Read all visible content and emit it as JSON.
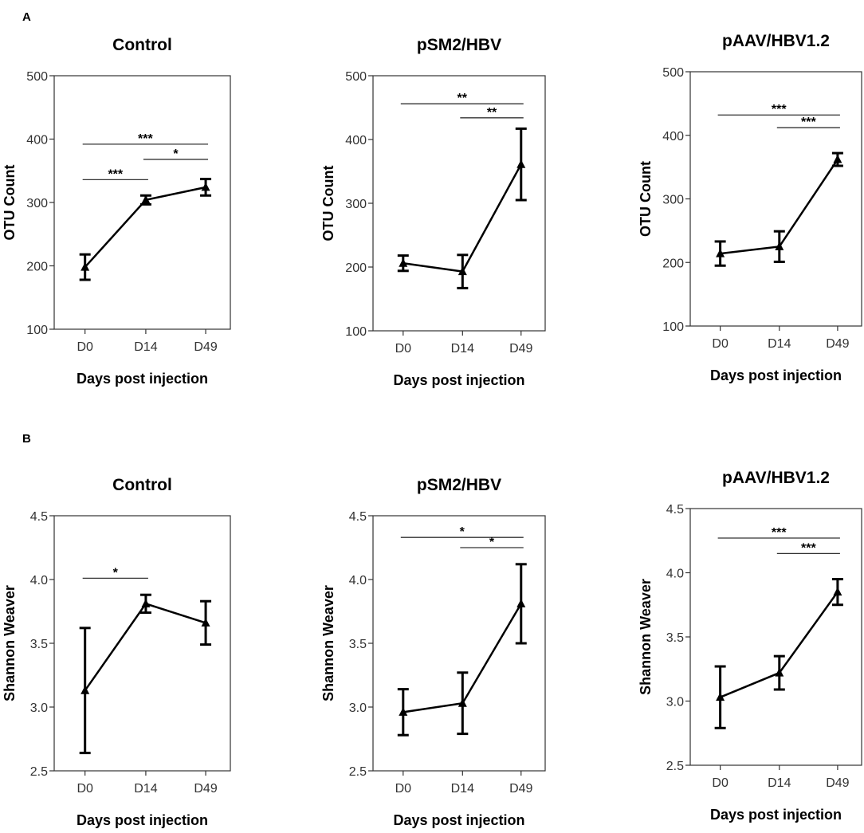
{
  "panels": [
    {
      "label": "A"
    },
    {
      "label": "B"
    }
  ],
  "chart_data": [
    {
      "type": "line",
      "panel": "A",
      "title": "Control",
      "xlabel": "Days post injection",
      "ylabel": "OTU Count",
      "categories": [
        "D0",
        "D14",
        "D49"
      ],
      "values": [
        198,
        304,
        324
      ],
      "errors": [
        20,
        7,
        13
      ],
      "ylim": [
        100,
        500
      ],
      "yticks": [
        "100",
        "200",
        "300",
        "400",
        "500"
      ],
      "significance": [
        {
          "from": 0,
          "to": 2,
          "label": "***",
          "y": 392
        },
        {
          "from": 0,
          "to": 1,
          "label": "***",
          "y": 336
        },
        {
          "from": 1,
          "to": 2,
          "label": "*",
          "y": 368
        }
      ]
    },
    {
      "type": "line",
      "panel": "A",
      "title": "pSM2/HBV",
      "xlabel": "Days post injection",
      "ylabel": "OTU Count",
      "categories": [
        "D0",
        "D14",
        "D49"
      ],
      "values": [
        206,
        193,
        361
      ],
      "errors": [
        12,
        26,
        56
      ],
      "ylim": [
        100,
        500
      ],
      "yticks": [
        "100",
        "200",
        "300",
        "400",
        "500"
      ],
      "significance": [
        {
          "from": 0,
          "to": 2,
          "label": "**",
          "y": 456
        },
        {
          "from": 1,
          "to": 2,
          "label": "**",
          "y": 434
        }
      ]
    },
    {
      "type": "line",
      "panel": "A",
      "title": "pAAV/HBV1.2",
      "xlabel": "Days post injection",
      "ylabel": "OTU Count",
      "categories": [
        "D0",
        "D14",
        "D49"
      ],
      "values": [
        214,
        225,
        362
      ],
      "errors": [
        19,
        24,
        10
      ],
      "ylim": [
        100,
        500
      ],
      "yticks": [
        "100",
        "200",
        "300",
        "400",
        "500"
      ],
      "significance": [
        {
          "from": 0,
          "to": 2,
          "label": "***",
          "y": 432
        },
        {
          "from": 1,
          "to": 2,
          "label": "***",
          "y": 412
        }
      ]
    },
    {
      "type": "line",
      "panel": "B",
      "title": "Control",
      "xlabel": "Days post injection",
      "ylabel": "Shannon Weaver",
      "categories": [
        "D0",
        "D14",
        "D49"
      ],
      "values": [
        3.13,
        3.81,
        3.66
      ],
      "errors": [
        0.49,
        0.07,
        0.17
      ],
      "ylim": [
        2.5,
        4.5
      ],
      "yticks": [
        "2.5",
        "3.0",
        "3.5",
        "4.0",
        "4.5"
      ],
      "significance": [
        {
          "from": 0,
          "to": 1,
          "label": "*",
          "y": 4.01
        }
      ]
    },
    {
      "type": "line",
      "panel": "B",
      "title": "pSM2/HBV",
      "xlabel": "Days post injection",
      "ylabel": "Shannon Weaver",
      "categories": [
        "D0",
        "D14",
        "D49"
      ],
      "values": [
        2.96,
        3.03,
        3.81
      ],
      "errors": [
        0.18,
        0.24,
        0.31
      ],
      "ylim": [
        2.5,
        4.5
      ],
      "yticks": [
        "2.5",
        "3.0",
        "3.5",
        "4.0",
        "4.5"
      ],
      "significance": [
        {
          "from": 0,
          "to": 2,
          "label": "*",
          "y": 4.33
        },
        {
          "from": 1,
          "to": 2,
          "label": "*",
          "y": 4.25
        }
      ]
    },
    {
      "type": "line",
      "panel": "B",
      "title": "pAAV/HBV1.2",
      "xlabel": "Days post injection",
      "ylabel": "Shannon Weaver",
      "categories": [
        "D0",
        "D14",
        "D49"
      ],
      "values": [
        3.03,
        3.22,
        3.85
      ],
      "errors": [
        0.24,
        0.13,
        0.1
      ],
      "ylim": [
        2.5,
        4.5
      ],
      "yticks": [
        "2.5",
        "3.0",
        "3.5",
        "4.0",
        "4.5"
      ],
      "significance": [
        {
          "from": 0,
          "to": 2,
          "label": "***",
          "y": 4.27
        },
        {
          "from": 1,
          "to": 2,
          "label": "***",
          "y": 4.15
        }
      ]
    }
  ]
}
